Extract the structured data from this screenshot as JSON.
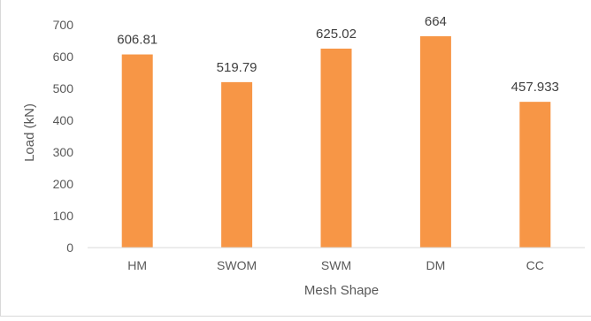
{
  "chart_data": {
    "type": "bar",
    "title": "",
    "xlabel": "Mesh Shape",
    "ylabel": "Load (kN)",
    "categories": [
      "HM",
      "SWOM",
      "SWM",
      "DM",
      "CC"
    ],
    "values": [
      606.81,
      519.79,
      625.02,
      664,
      457.933
    ],
    "data_labels": [
      "606.81",
      "519.79",
      "625.02",
      "664",
      "457.933"
    ],
    "ylim": [
      0,
      700
    ],
    "yticks": [
      0,
      100,
      200,
      300,
      400,
      500,
      600,
      700
    ],
    "grid": false,
    "legend": "none",
    "bar_color": "#F79646",
    "axis_color": "#d9d9d9"
  }
}
